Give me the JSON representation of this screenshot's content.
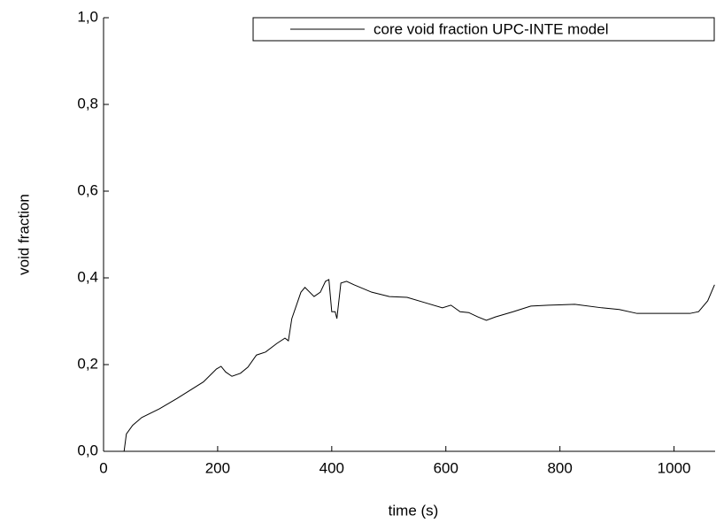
{
  "chart_data": {
    "type": "line",
    "x_label": "time (s)",
    "y_label": "void fraction",
    "xlim": [
      0,
      1072
    ],
    "ylim": [
      0,
      1.0
    ],
    "xticks": [
      0,
      200,
      400,
      600,
      800,
      1000
    ],
    "yticks": [
      {
        "value": 0,
        "label": "0,0"
      },
      {
        "value": 0.2,
        "label": "0,2"
      },
      {
        "value": 0.4,
        "label": "0,4"
      },
      {
        "value": 0.6,
        "label": "0,6"
      },
      {
        "value": 0.8,
        "label": "0,8"
      },
      {
        "value": 1.0,
        "label": "1,0"
      }
    ],
    "legend": "top-right",
    "series": [
      {
        "name": "core void fraction UPC-INTE model",
        "color": "#000000",
        "x": [
          36,
          40,
          51,
          67,
          98,
          129,
          175,
          198,
          206,
          214,
          225,
          240,
          253,
          268,
          284,
          304,
          318,
          324,
          330,
          346,
          353,
          369,
          380,
          389,
          395,
          400,
          406,
          409,
          416,
          426,
          439,
          470,
          501,
          532,
          563,
          594,
          609,
          625,
          640,
          656,
          671,
          687,
          718,
          749,
          780,
          826,
          873,
          904,
          935,
          981,
          1028,
          1043,
          1059,
          1071
        ],
        "values": [
          0,
          0.04,
          0.06,
          0.078,
          0.098,
          0.122,
          0.16,
          0.19,
          0.196,
          0.183,
          0.173,
          0.18,
          0.194,
          0.222,
          0.229,
          0.249,
          0.261,
          0.255,
          0.306,
          0.367,
          0.378,
          0.357,
          0.367,
          0.392,
          0.396,
          0.322,
          0.322,
          0.306,
          0.388,
          0.392,
          0.384,
          0.367,
          0.357,
          0.355,
          0.343,
          0.331,
          0.337,
          0.322,
          0.32,
          0.31,
          0.302,
          0.31,
          0.322,
          0.335,
          0.337,
          0.339,
          0.331,
          0.327,
          0.318,
          0.318,
          0.318,
          0.322,
          0.347,
          0.384
        ]
      }
    ]
  }
}
